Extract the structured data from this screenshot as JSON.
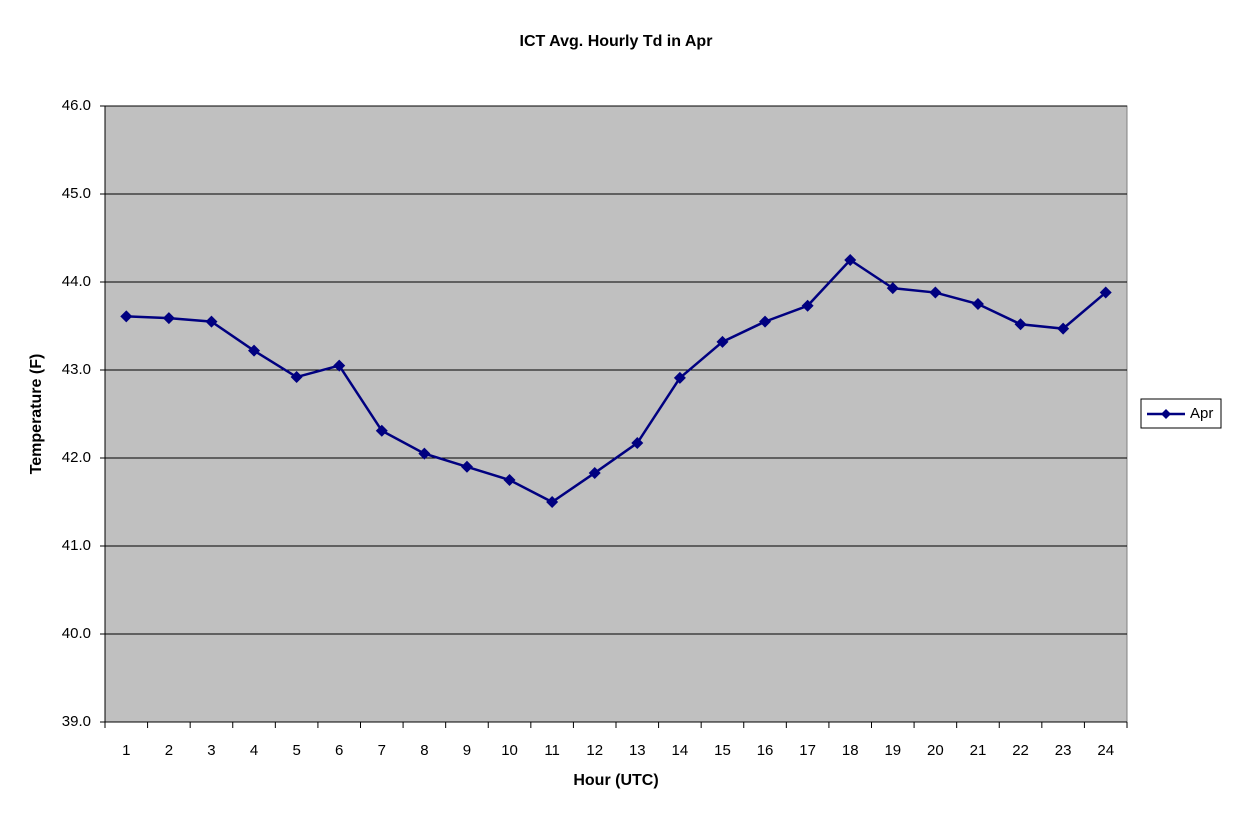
{
  "chart_data": {
    "type": "line",
    "title": "ICT Avg. Hourly Td in Apr",
    "x_label": "Hour (UTC)",
    "y_label": "Temperature (F)",
    "categories": [
      "1",
      "2",
      "3",
      "4",
      "5",
      "6",
      "7",
      "8",
      "9",
      "10",
      "11",
      "12",
      "13",
      "14",
      "15",
      "16",
      "17",
      "18",
      "19",
      "20",
      "21",
      "22",
      "23",
      "24"
    ],
    "series": [
      {
        "name": "Apr",
        "color": "#000080",
        "values": [
          43.61,
          43.59,
          43.55,
          43.22,
          42.92,
          43.05,
          42.31,
          42.05,
          41.9,
          41.75,
          41.5,
          41.83,
          42.17,
          42.91,
          43.32,
          43.55,
          43.73,
          44.25,
          43.93,
          43.88,
          43.75,
          43.52,
          43.47,
          43.88
        ]
      }
    ],
    "ylim": [
      39,
      46
    ],
    "yticks": [
      {
        "value": 39,
        "label": "39.0"
      },
      {
        "value": 40,
        "label": "40.0"
      },
      {
        "value": 41,
        "label": "41.0"
      },
      {
        "value": 42,
        "label": "42.0"
      },
      {
        "value": 43,
        "label": "43.0"
      },
      {
        "value": 44,
        "label": "44.0"
      },
      {
        "value": 45,
        "label": "45.0"
      },
      {
        "value": 46,
        "label": "46.0"
      }
    ],
    "grid": true,
    "plot_background": "#c0c0c0",
    "legend": "right"
  }
}
